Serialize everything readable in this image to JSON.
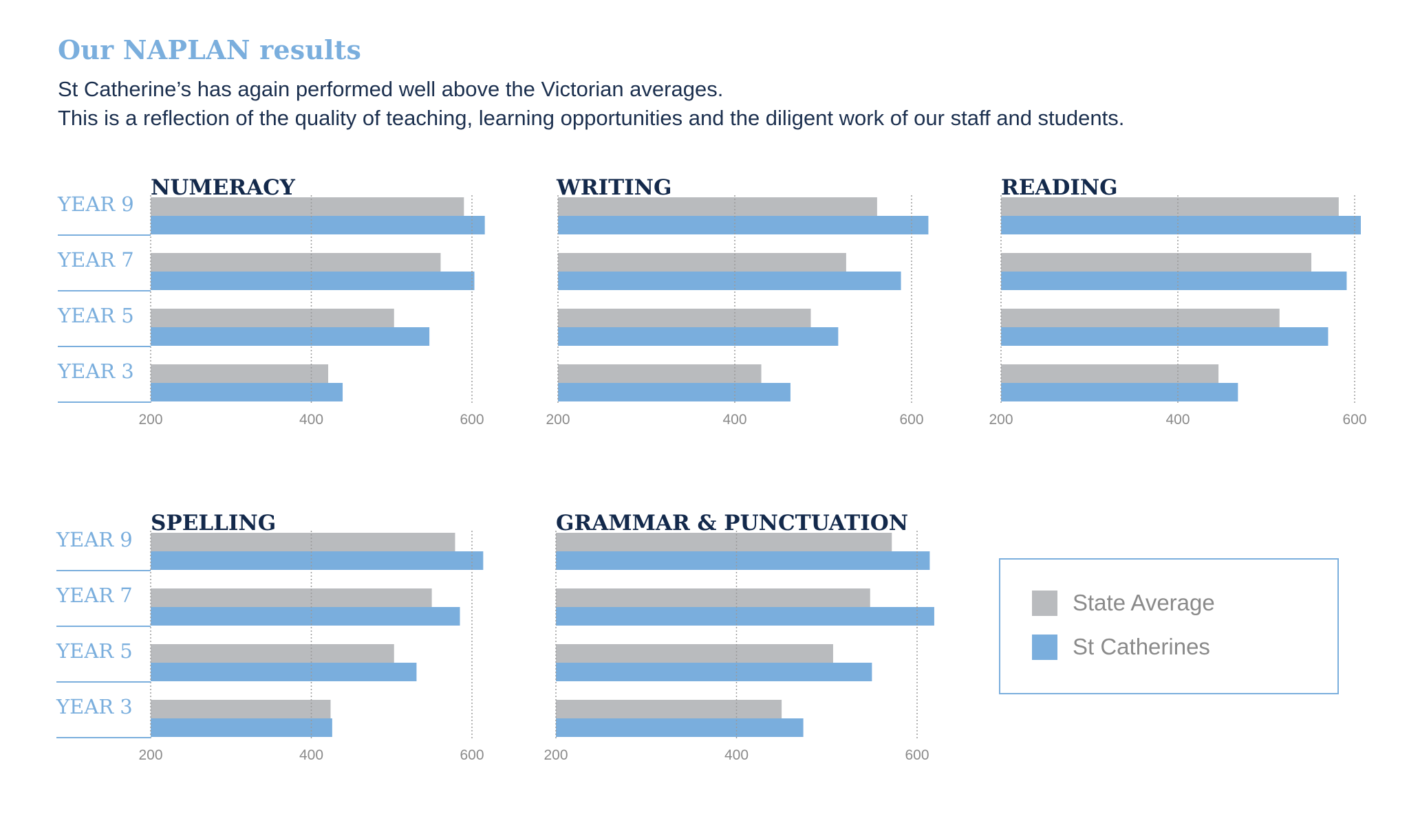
{
  "header": {
    "title": "Our NAPLAN results",
    "intro_line1": "St Catherine’s has again performed well above the Victorian averages.",
    "intro_line2": "This is a reflection of the quality of teaching, learning opportunities and the diligent work of our staff and students."
  },
  "colors": {
    "state_average": "#b9bbbe",
    "st_catherines": "#7aaedd"
  },
  "legend": {
    "items": [
      {
        "label": "State Average",
        "color": "#b9bbbe"
      },
      {
        "label": "St Catherines",
        "color": "#7aaedd"
      }
    ]
  },
  "chart_data": [
    {
      "type": "bar",
      "orientation": "horizontal",
      "title": "NUMERACY",
      "categories": [
        "YEAR 9",
        "YEAR 7",
        "YEAR 5",
        "YEAR 3"
      ],
      "xlim": [
        200,
        600
      ],
      "ticks": [
        200,
        400,
        600
      ],
      "series": [
        {
          "name": "State Average",
          "values": [
            590,
            561,
            503,
            421
          ]
        },
        {
          "name": "St Catherines",
          "values": [
            616,
            603,
            547,
            439
          ]
        }
      ]
    },
    {
      "type": "bar",
      "orientation": "horizontal",
      "title": "WRITING",
      "categories": [
        "YEAR 9",
        "YEAR 7",
        "YEAR 5",
        "YEAR 3"
      ],
      "xlim": [
        200,
        600
      ],
      "ticks": [
        200,
        400,
        600
      ],
      "series": [
        {
          "name": "State Average",
          "values": [
            561,
            526,
            486,
            430
          ]
        },
        {
          "name": "St Catherines",
          "values": [
            619,
            588,
            517,
            463
          ]
        }
      ]
    },
    {
      "type": "bar",
      "orientation": "horizontal",
      "title": "READING",
      "categories": [
        "YEAR 9",
        "YEAR 7",
        "YEAR 5",
        "YEAR 3"
      ],
      "xlim": [
        200,
        600
      ],
      "ticks": [
        200,
        400,
        600
      ],
      "series": [
        {
          "name": "State Average",
          "values": [
            582,
            551,
            515,
            446
          ]
        },
        {
          "name": "St Catherines",
          "values": [
            607,
            591,
            570,
            468
          ]
        }
      ]
    },
    {
      "type": "bar",
      "orientation": "horizontal",
      "title": "SPELLING",
      "categories": [
        "YEAR 9",
        "YEAR 7",
        "YEAR 5",
        "YEAR 3"
      ],
      "xlim": [
        200,
        600
      ],
      "ticks": [
        200,
        400,
        600
      ],
      "series": [
        {
          "name": "State Average",
          "values": [
            579,
            550,
            503,
            424
          ]
        },
        {
          "name": "St Catherines",
          "values": [
            614,
            585,
            531,
            426
          ]
        }
      ]
    },
    {
      "type": "bar",
      "orientation": "horizontal",
      "title": "GRAMMAR & PUNCTUATION",
      "categories": [
        "YEAR 9",
        "YEAR 7",
        "YEAR 5",
        "YEAR 3"
      ],
      "xlim": [
        200,
        600
      ],
      "ticks": [
        200,
        400,
        600
      ],
      "series": [
        {
          "name": "State Average",
          "values": [
            572,
            548,
            507,
            450
          ]
        },
        {
          "name": "St Catherines",
          "values": [
            614,
            619,
            550,
            474
          ]
        }
      ]
    }
  ]
}
